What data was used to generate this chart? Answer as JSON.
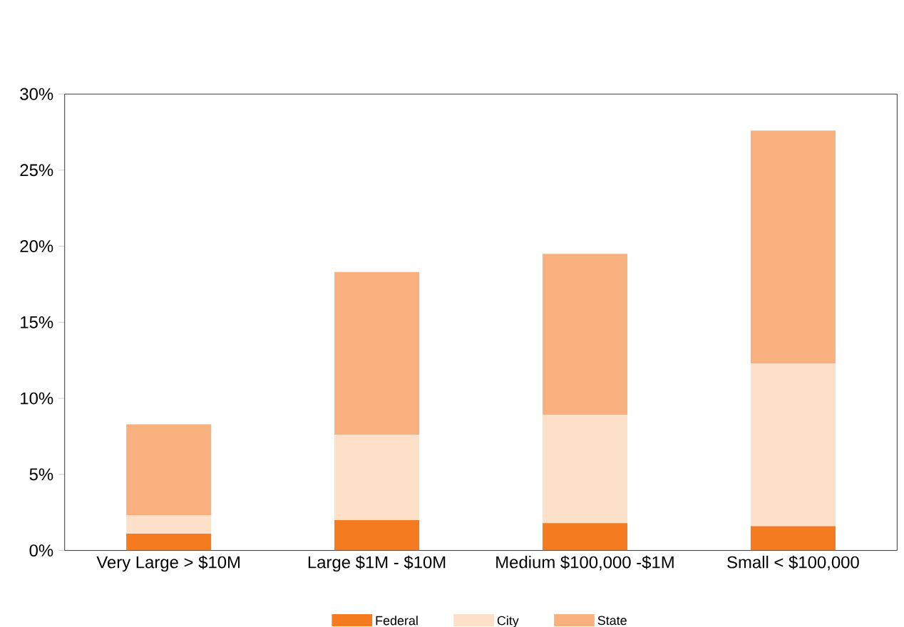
{
  "chart_data": {
    "type": "bar",
    "stacked": true,
    "categories": [
      "Very Large > $10M",
      "Large $1M - $10M",
      "Medium $100,000 -$1M",
      "Small < $100,000"
    ],
    "series": [
      {
        "name": "Federal",
        "color": "#f47b20",
        "values": [
          1.1,
          2.0,
          1.8,
          1.6
        ]
      },
      {
        "name": "City",
        "color": "#fde0c8",
        "values": [
          1.2,
          5.6,
          7.1,
          10.7
        ]
      },
      {
        "name": "State",
        "color": "#f9b07f",
        "values": [
          6.0,
          10.7,
          10.6,
          15.3
        ]
      }
    ],
    "ylim": [
      0,
      30
    ],
    "yticks": [
      {
        "value": 0,
        "label": "0%"
      },
      {
        "value": 5,
        "label": "5%"
      },
      {
        "value": 10,
        "label": "10%"
      },
      {
        "value": 15,
        "label": "15%"
      },
      {
        "value": 20,
        "label": "20%"
      },
      {
        "value": 25,
        "label": "25%"
      },
      {
        "value": 30,
        "label": "30%"
      }
    ],
    "grid": false,
    "legend": "bottom"
  }
}
